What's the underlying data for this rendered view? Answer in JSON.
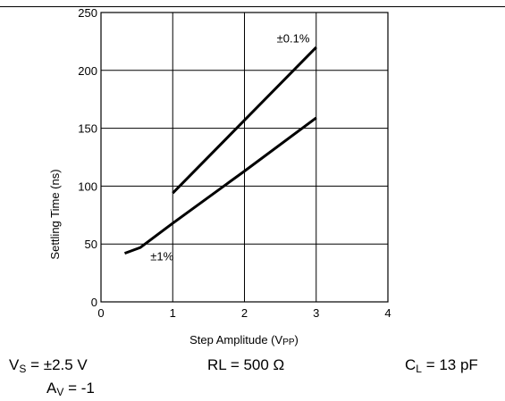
{
  "chart_data": {
    "type": "line",
    "title": "",
    "xlabel_main": "Step Amplitude (V",
    "xlabel_sub": "PP",
    "xlabel_close": ")",
    "ylabel": "Settling Time (ns)",
    "xlim": [
      0,
      4
    ],
    "ylim": [
      0,
      250
    ],
    "xticks": [
      "0",
      "1",
      "2",
      "3",
      "4"
    ],
    "yticks": [
      "0",
      "50",
      "100",
      "150",
      "200",
      "250"
    ],
    "xtick_values": [
      0,
      1,
      2,
      3,
      4
    ],
    "ytick_values": [
      0,
      50,
      100,
      150,
      200,
      250
    ],
    "grid": true,
    "series": [
      {
        "name": "±0.1%",
        "color": "#000000",
        "x": [
          1.0,
          3.0
        ],
        "y": [
          94,
          220
        ]
      },
      {
        "name": "±1%",
        "color": "#000000",
        "x": [
          0.33,
          0.55,
          1.0,
          2.0,
          3.0
        ],
        "y": [
          42,
          47,
          68,
          113,
          159
        ]
      }
    ],
    "annotations": [
      {
        "text": "±0.1%",
        "x": 2.68,
        "y": 224
      },
      {
        "text": "±1%",
        "x": 0.85,
        "y": 36
      }
    ]
  },
  "conditions": {
    "vs_main": "V",
    "vs_sub": "S",
    "vs_rest": " = ±2.5 V",
    "rl": "RL = 500 Ω",
    "cl_main": "C",
    "cl_sub": "L",
    "cl_rest": " = 13 pF",
    "av_main": "A",
    "av_sub": "V",
    "av_rest": " = -1"
  }
}
